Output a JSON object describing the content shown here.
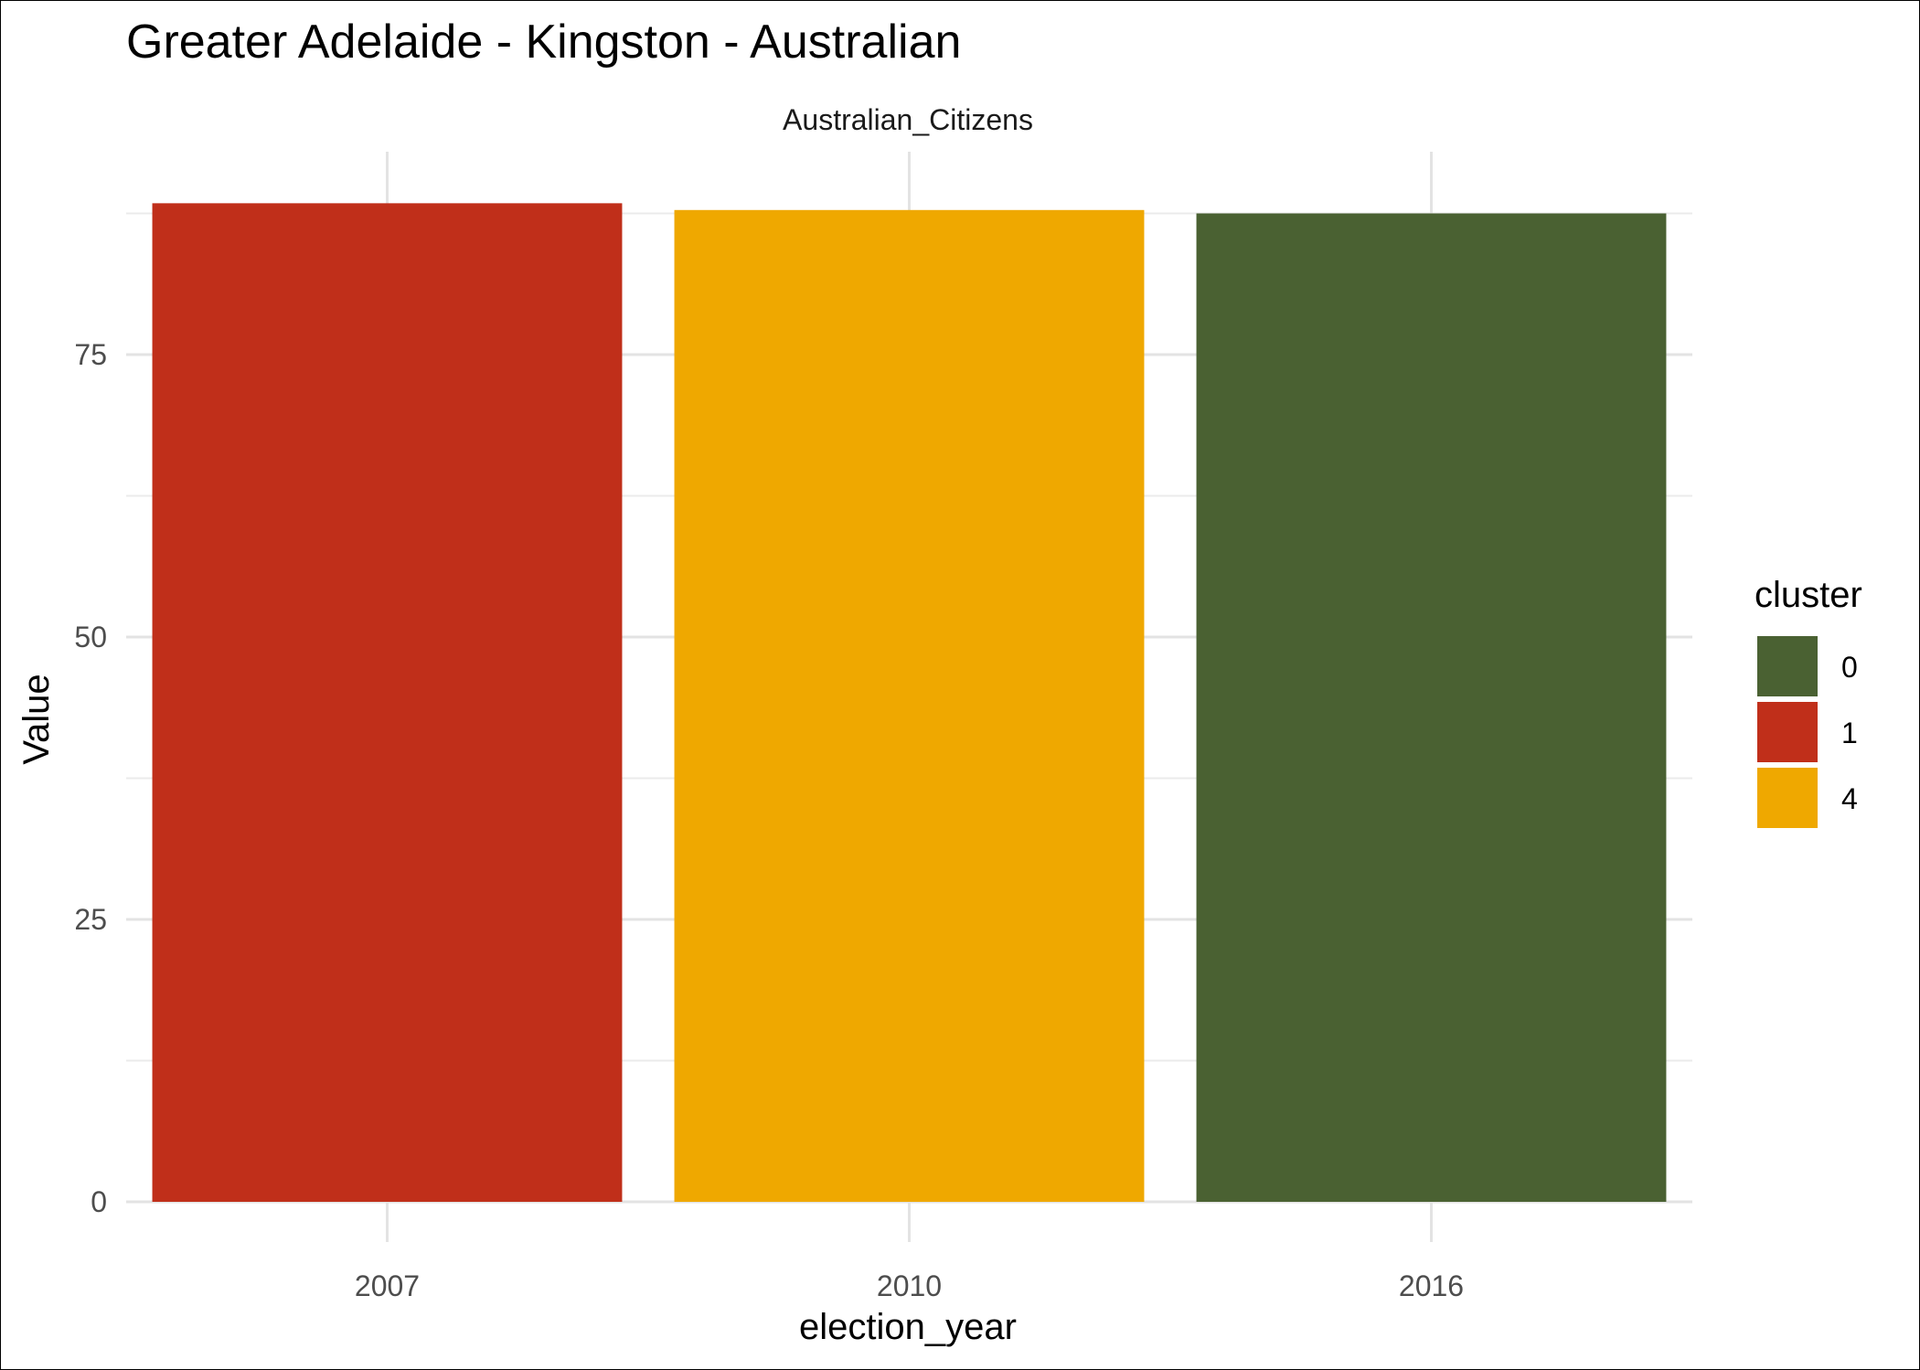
{
  "chart_data": {
    "type": "bar",
    "title": "Greater Adelaide - Kingston - Australian",
    "facet_label": "Australian_Citizens",
    "xlabel": "election_year",
    "ylabel": "Value",
    "categories": [
      "2007",
      "2010",
      "2016"
    ],
    "values": [
      88.4,
      87.8,
      87.5
    ],
    "bar_clusters": [
      "1",
      "4",
      "0"
    ],
    "ylim": [
      0,
      92
    ],
    "yticks": [
      0,
      25,
      50,
      75
    ],
    "grid": true,
    "legend": {
      "title": "cluster",
      "placement": "right",
      "entries": [
        {
          "label": "0",
          "color": "#4a6132"
        },
        {
          "label": "1",
          "color": "#c02f1a"
        },
        {
          "label": "4",
          "color": "#efa800"
        }
      ]
    }
  }
}
